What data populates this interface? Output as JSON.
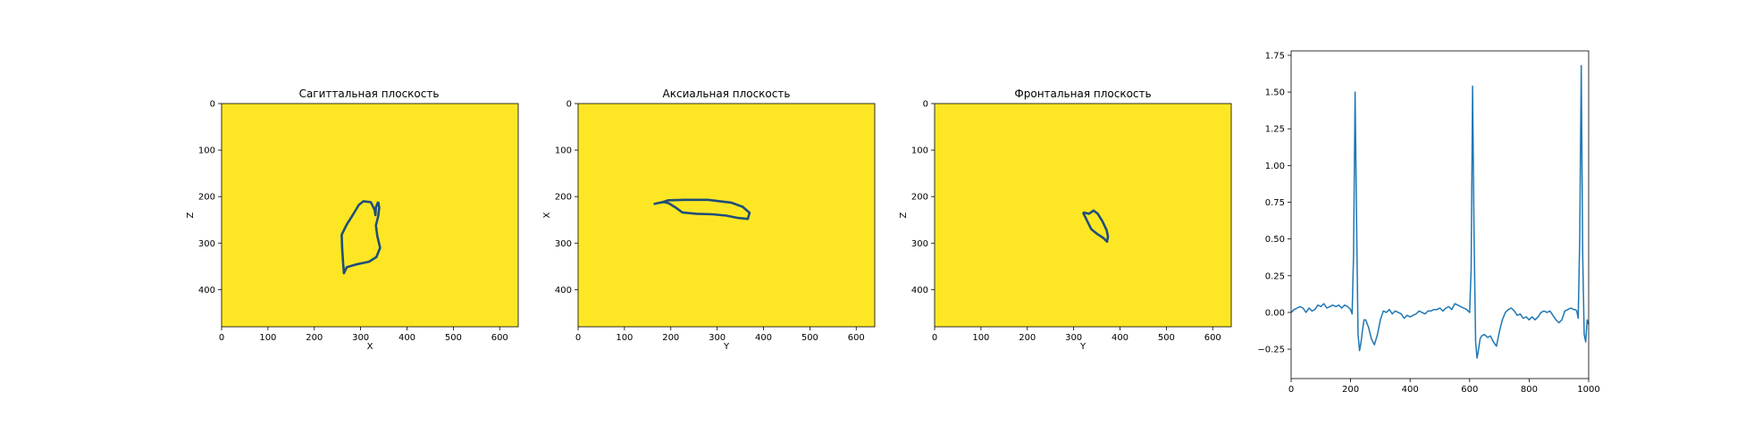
{
  "colors": {
    "background": "#ffffff",
    "image_fill": "#fde725",
    "contour": "#1f4e79",
    "line": "#1f77b4"
  },
  "chart_data": [
    {
      "type": "image",
      "title": "Сагиттальная плоскость",
      "xlabel": "X",
      "ylabel": "Z",
      "xlim": [
        0,
        640
      ],
      "ylim": [
        480,
        0
      ],
      "xticks": [
        0,
        100,
        200,
        300,
        400,
        500,
        600
      ],
      "yticks": [
        0,
        100,
        200,
        300,
        400
      ],
      "contour": [
        [
          338,
          211
        ],
        [
          333,
          223
        ],
        [
          332,
          240
        ],
        [
          330,
          228
        ],
        [
          322,
          212
        ],
        [
          306,
          210
        ],
        [
          296,
          218
        ],
        [
          284,
          238
        ],
        [
          270,
          260
        ],
        [
          259,
          282
        ],
        [
          260,
          310
        ],
        [
          262,
          340
        ],
        [
          264,
          365
        ],
        [
          270,
          352
        ],
        [
          290,
          346
        ],
        [
          318,
          340
        ],
        [
          334,
          330
        ],
        [
          342,
          310
        ],
        [
          336,
          285
        ],
        [
          333,
          262
        ],
        [
          338,
          242
        ],
        [
          340,
          224
        ],
        [
          338,
          211
        ]
      ]
    },
    {
      "type": "image",
      "title": "Аксиальная плоскость",
      "xlabel": "Y",
      "ylabel": "X",
      "xlim": [
        0,
        640
      ],
      "ylim": [
        480,
        0
      ],
      "xticks": [
        0,
        100,
        200,
        300,
        400,
        500,
        600
      ],
      "yticks": [
        0,
        100,
        200,
        300,
        400
      ],
      "contour": [
        [
          163,
          216
        ],
        [
          182,
          212
        ],
        [
          195,
          208
        ],
        [
          230,
          207
        ],
        [
          280,
          207
        ],
        [
          330,
          213
        ],
        [
          355,
          222
        ],
        [
          370,
          235
        ],
        [
          366,
          248
        ],
        [
          345,
          246
        ],
        [
          320,
          241
        ],
        [
          290,
          238
        ],
        [
          255,
          237
        ],
        [
          225,
          234
        ],
        [
          208,
          222
        ],
        [
          195,
          214
        ],
        [
          185,
          212
        ],
        [
          172,
          214
        ],
        [
          163,
          216
        ]
      ]
    },
    {
      "type": "image",
      "title": "Фронтальная плоскость",
      "xlabel": "Y",
      "ylabel": "Z",
      "xlim": [
        0,
        640
      ],
      "ylim": [
        480,
        0
      ],
      "xticks": [
        0,
        100,
        200,
        300,
        400,
        500,
        600
      ],
      "yticks": [
        0,
        100,
        200,
        300,
        400
      ],
      "contour": [
        [
          320,
          234
        ],
        [
          333,
          237
        ],
        [
          343,
          230
        ],
        [
          352,
          237
        ],
        [
          362,
          253
        ],
        [
          371,
          272
        ],
        [
          374,
          286
        ],
        [
          372,
          297
        ],
        [
          364,
          289
        ],
        [
          350,
          280
        ],
        [
          338,
          270
        ],
        [
          332,
          258
        ],
        [
          326,
          246
        ],
        [
          320,
          234
        ]
      ]
    },
    {
      "type": "line",
      "title": "",
      "xlabel": "",
      "ylabel": "",
      "xlim": [
        0,
        1000
      ],
      "ylim": [
        -0.45,
        1.78
      ],
      "xticks": [
        0,
        200,
        400,
        600,
        800,
        1000
      ],
      "yticks": [
        -0.25,
        0.0,
        0.25,
        0.5,
        0.75,
        1.0,
        1.25,
        1.5,
        1.75
      ],
      "ytick_labels": [
        "−0.25",
        "0.00",
        "0.25",
        "0.50",
        "0.75",
        "1.00",
        "1.25",
        "1.50",
        "1.75"
      ],
      "series": [
        {
          "x": [
            0,
            10,
            20,
            30,
            40,
            50,
            60,
            70,
            80,
            90,
            100,
            110,
            120,
            130,
            140,
            150,
            160,
            170,
            180,
            190,
            200,
            205,
            210,
            215,
            220,
            225,
            230,
            235,
            240,
            245,
            250,
            260,
            270,
            280,
            290,
            300,
            310,
            320,
            330,
            340,
            350,
            360,
            370,
            380,
            390,
            400,
            410,
            420,
            430,
            440,
            450,
            460,
            470,
            480,
            490,
            500,
            510,
            520,
            530,
            540,
            550,
            560,
            570,
            580,
            590,
            600,
            605,
            610,
            615,
            620,
            625,
            630,
            635,
            640,
            650,
            660,
            670,
            680,
            690,
            700,
            710,
            720,
            730,
            740,
            750,
            760,
            770,
            780,
            790,
            800,
            810,
            820,
            830,
            840,
            850,
            860,
            870,
            880,
            890,
            900,
            910,
            920,
            930,
            940,
            950,
            955,
            960,
            965,
            970,
            975,
            980,
            985,
            990,
            995,
            1000
          ],
          "y": [
            0.0,
            0.02,
            0.03,
            0.04,
            0.03,
            0.0,
            0.03,
            0.01,
            0.02,
            0.05,
            0.04,
            0.06,
            0.03,
            0.04,
            0.05,
            0.04,
            0.05,
            0.03,
            0.05,
            0.04,
            0.02,
            -0.01,
            0.4,
            1.5,
            0.6,
            -0.15,
            -0.26,
            -0.2,
            -0.12,
            -0.05,
            -0.05,
            -0.1,
            -0.18,
            -0.22,
            -0.15,
            -0.05,
            0.01,
            0.0,
            0.02,
            -0.01,
            0.01,
            0.0,
            -0.01,
            -0.04,
            -0.02,
            -0.03,
            -0.02,
            -0.01,
            0.01,
            0.0,
            -0.01,
            0.01,
            0.01,
            0.02,
            0.02,
            0.03,
            0.01,
            0.03,
            0.04,
            0.02,
            0.06,
            0.05,
            0.04,
            0.03,
            0.02,
            0.0,
            0.3,
            1.54,
            0.5,
            -0.2,
            -0.31,
            -0.25,
            -0.18,
            -0.16,
            -0.15,
            -0.17,
            -0.16,
            -0.2,
            -0.23,
            -0.13,
            -0.05,
            0.0,
            0.02,
            0.03,
            0.01,
            -0.02,
            -0.01,
            -0.04,
            -0.03,
            -0.05,
            -0.03,
            -0.05,
            -0.03,
            0.0,
            0.01,
            0.0,
            0.01,
            -0.02,
            -0.05,
            -0.07,
            -0.05,
            0.01,
            0.02,
            0.03,
            0.02,
            0.02,
            0.01,
            -0.04,
            0.5,
            1.68,
            0.4,
            -0.15,
            -0.2,
            -0.05,
            -0.08
          ]
        }
      ]
    }
  ]
}
